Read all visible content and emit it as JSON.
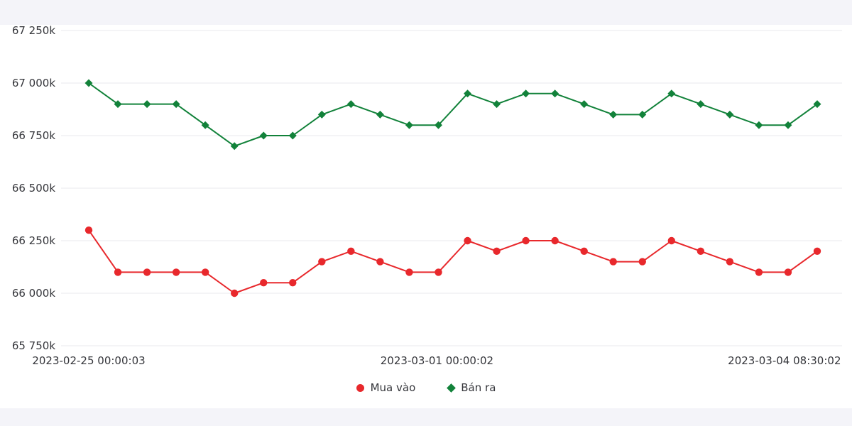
{
  "page": {
    "background_color": "#f4f4f9",
    "panel_color": "#ffffff",
    "grid_color": "#e9e9ee",
    "text_color": "#35363b"
  },
  "chart_data": {
    "type": "line",
    "title": "",
    "xlabel": "",
    "ylabel": "",
    "grid": true,
    "legend_position": "bottom",
    "ylim": [
      65750,
      67250
    ],
    "y_ticks": [
      {
        "value": 67250,
        "label": "67 250k"
      },
      {
        "value": 67000,
        "label": "67 000k"
      },
      {
        "value": 66750,
        "label": "66 750k"
      },
      {
        "value": 66500,
        "label": "66 500k"
      },
      {
        "value": 66250,
        "label": "66 250k"
      },
      {
        "value": 66000,
        "label": "66 000k"
      },
      {
        "value": 65750,
        "label": "65 750k"
      }
    ],
    "x_ticks": [
      {
        "label": "2023-02-25 00:00:03",
        "pos": 0.0
      },
      {
        "label": "2023-03-01 00:00:02",
        "pos": 0.478
      },
      {
        "label": "2023-03-04 08:30:02",
        "pos": 0.955
      }
    ],
    "series": [
      {
        "name": "Mua vào",
        "color": "#e8282c",
        "marker": "circle",
        "values": [
          66300,
          66100,
          66100,
          66100,
          66100,
          66000,
          66050,
          66050,
          66150,
          66200,
          66150,
          66100,
          66100,
          66250,
          66200,
          66250,
          66250,
          66200,
          66150,
          66150,
          66250,
          66200,
          66150,
          66100,
          66100,
          66200
        ]
      },
      {
        "name": "Bán ra",
        "color": "#12823a",
        "marker": "diamond",
        "values": [
          67000,
          66900,
          66900,
          66900,
          66800,
          66700,
          66750,
          66750,
          66850,
          66900,
          66850,
          66800,
          66800,
          66950,
          66900,
          66950,
          66950,
          66900,
          66850,
          66850,
          66950,
          66900,
          66850,
          66800,
          66800,
          66900
        ]
      }
    ]
  }
}
